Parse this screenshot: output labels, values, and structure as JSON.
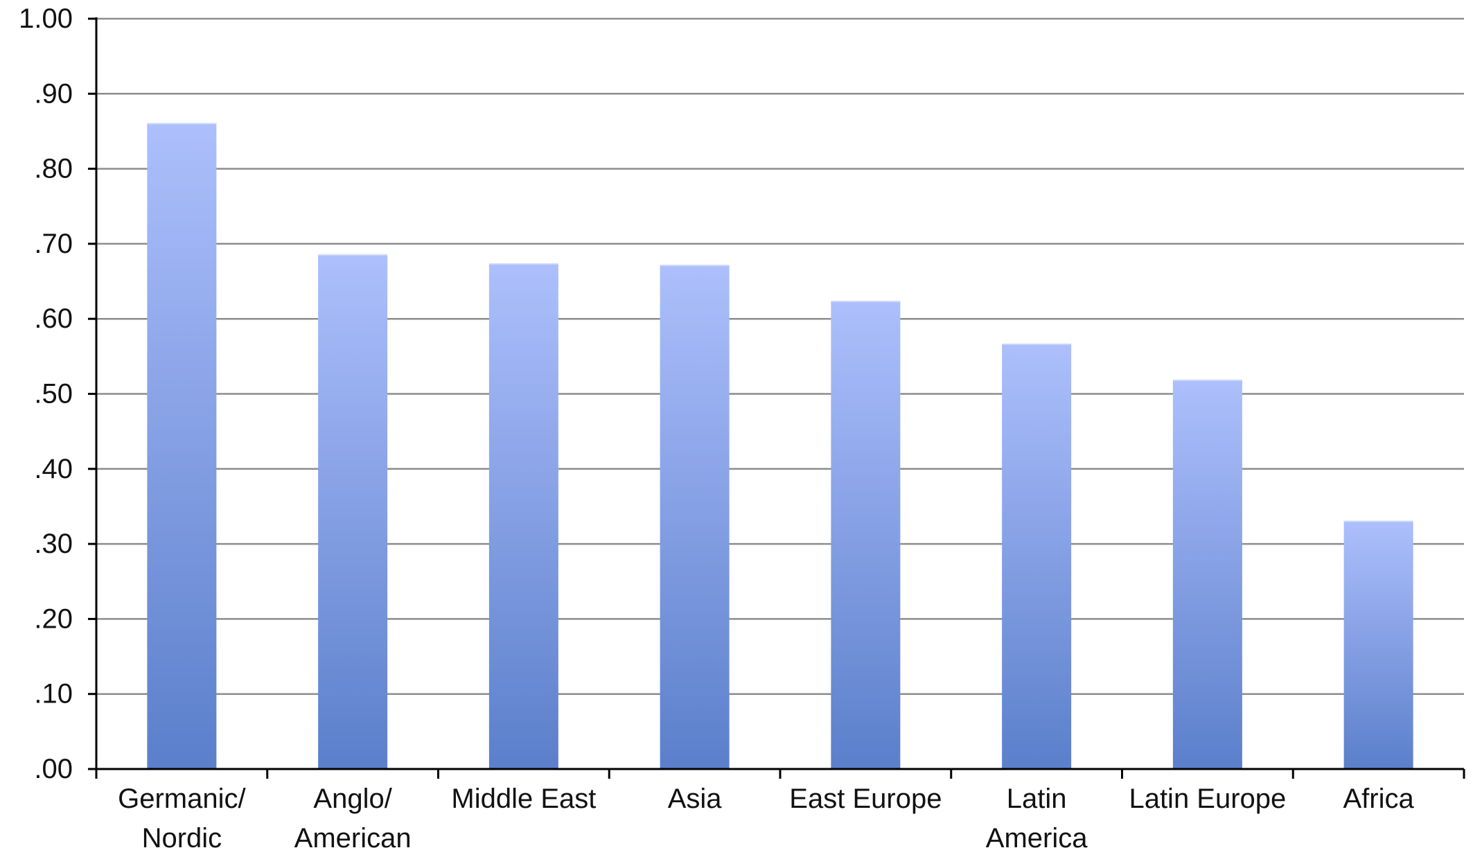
{
  "chart_data": {
    "type": "bar",
    "title": "",
    "xlabel": "",
    "ylabel": "",
    "ylim": [
      0,
      1
    ],
    "yticks": [
      0,
      0.1,
      0.2,
      0.3,
      0.4,
      0.5,
      0.6,
      0.7,
      0.8,
      0.9,
      1.0
    ],
    "ytick_labels": [
      ".00",
      ".10",
      ".20",
      ".30",
      ".40",
      ".50",
      ".60",
      ".70",
      ".80",
      ".90",
      "1.00"
    ],
    "categories": [
      "Germanic/ Nordic",
      "Anglo/ American",
      "Middle East",
      "Asia",
      "East Europe",
      "Latin America",
      "Latin Europe",
      "Africa"
    ],
    "category_lines": [
      [
        "Germanic/",
        "Nordic"
      ],
      [
        "Anglo/",
        "American"
      ],
      [
        "Middle East"
      ],
      [
        "Asia"
      ],
      [
        "East Europe"
      ],
      [
        "Latin",
        "America"
      ],
      [
        "Latin Europe"
      ],
      [
        "Africa"
      ]
    ],
    "values": [
      0.86,
      0.685,
      0.673,
      0.671,
      0.623,
      0.566,
      0.518,
      0.33
    ],
    "grid": true,
    "legend": "none",
    "colors": {
      "bar_top": "#adbffc",
      "bar_bottom": "#5b7fcb",
      "grid": "#8c8c8c",
      "axis": "#000000",
      "text": "#111111"
    }
  }
}
